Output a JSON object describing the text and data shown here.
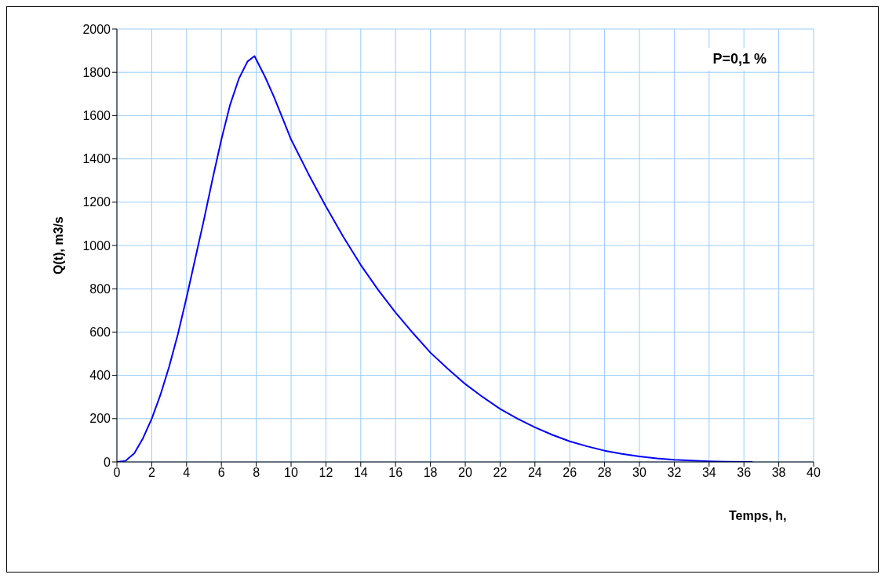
{
  "chart_data": {
    "type": "line",
    "xlabel": "Temps, h,",
    "ylabel": "Q(t), m3/s",
    "annotations": [
      "P=0,1 %"
    ],
    "x": [
      0,
      0.5,
      1,
      1.5,
      2,
      2.5,
      3,
      3.5,
      4,
      4.5,
      5,
      5.5,
      6,
      6.5,
      7,
      7.5,
      7.9,
      8.5,
      9,
      9.5,
      10,
      11,
      12,
      13,
      14,
      15,
      16,
      17,
      18,
      19,
      20,
      21,
      22,
      23,
      24,
      25,
      26,
      27,
      28,
      29,
      30,
      31,
      32,
      33,
      34,
      35,
      36.5
    ],
    "series": [
      {
        "color": "#0000ff",
        "values": [
          0,
          5,
          40,
          110,
          200,
          310,
          440,
          590,
          760,
          940,
          1120,
          1310,
          1490,
          1650,
          1770,
          1850,
          1875,
          1780,
          1690,
          1590,
          1490,
          1330,
          1180,
          1040,
          910,
          795,
          690,
          595,
          505,
          430,
          360,
          300,
          245,
          200,
          160,
          125,
          95,
          72,
          52,
          37,
          25,
          16,
          10,
          6,
          3,
          1,
          0
        ]
      }
    ],
    "xlim": [
      0,
      40
    ],
    "xticks": [
      0,
      2,
      4,
      6,
      8,
      10,
      12,
      14,
      16,
      18,
      20,
      22,
      24,
      26,
      28,
      30,
      32,
      34,
      36,
      38,
      40
    ],
    "ylim": [
      0,
      2000
    ],
    "yticks": [
      0,
      200,
      400,
      600,
      800,
      1000,
      1200,
      1400,
      1600,
      1800,
      2000
    ],
    "grid": true,
    "legend": false,
    "marker": "none",
    "line_style": "solid"
  }
}
